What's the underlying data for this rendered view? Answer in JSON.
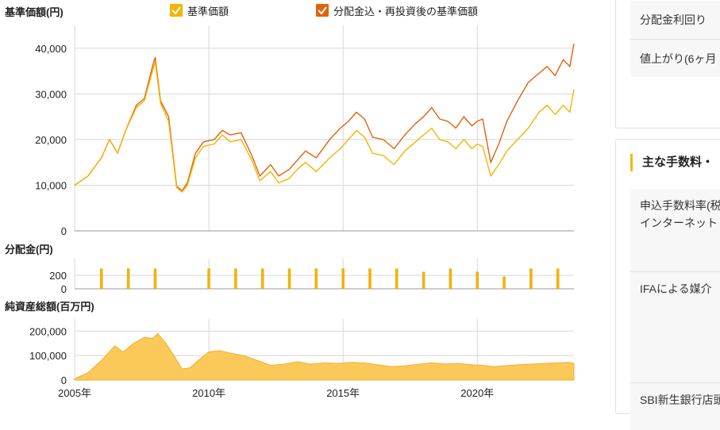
{
  "colors": {
    "nav": "#f5b400",
    "reinvest": "#e0620c",
    "assets": "#fbc95a",
    "dist": "#f6b400",
    "grid": "#d8d8d8"
  },
  "legend": {
    "nav_label": "基準価額",
    "reinvest_label": "分配金込・再投資後の基準価額"
  },
  "panels": {
    "price_title": "基準価額(円)",
    "dist_title": "分配金(円)",
    "assets_title": "純資産総額(百万円)"
  },
  "x_ticks": [
    "2005年",
    "2010年",
    "2015年",
    "2020年"
  ],
  "chart_data": [
    {
      "type": "line",
      "title": "基準価額(円)",
      "ylim": [
        0,
        45000
      ],
      "yticks": [
        "0",
        "10,000",
        "20,000",
        "30,000",
        "40,000"
      ],
      "xlim": [
        2005.0,
        2023.6
      ],
      "x": [
        2005.0,
        2005.5,
        2006.0,
        2006.3,
        2006.6,
        2006.9,
        2007.3,
        2007.6,
        2007.9,
        2008.0,
        2008.2,
        2008.5,
        2008.8,
        2009.0,
        2009.2,
        2009.5,
        2009.8,
        2010.2,
        2010.5,
        2010.8,
        2011.2,
        2011.6,
        2011.9,
        2012.3,
        2012.6,
        2013.0,
        2013.3,
        2013.6,
        2014.0,
        2014.5,
        2014.9,
        2015.2,
        2015.5,
        2015.8,
        2016.1,
        2016.5,
        2016.9,
        2017.3,
        2017.7,
        2018.0,
        2018.3,
        2018.6,
        2018.9,
        2019.2,
        2019.5,
        2019.8,
        2020.0,
        2020.2,
        2020.5,
        2020.8,
        2021.1,
        2021.5,
        2021.9,
        2022.3,
        2022.6,
        2022.9,
        2023.2,
        2023.45,
        2023.6
      ],
      "series": [
        {
          "name": "基準価額",
          "values": [
            10000,
            12000,
            16000,
            20000,
            17000,
            22000,
            27000,
            28500,
            35000,
            37000,
            28000,
            24000,
            9500,
            8500,
            10000,
            16000,
            18500,
            19000,
            21000,
            19500,
            20000,
            15500,
            11000,
            13000,
            10500,
            11500,
            13500,
            15000,
            13000,
            16000,
            18000,
            20000,
            22000,
            20500,
            17000,
            16500,
            14500,
            17500,
            19500,
            21000,
            22500,
            20000,
            19500,
            18000,
            20000,
            18000,
            19000,
            18500,
            12000,
            14500,
            17500,
            20000,
            22500,
            26000,
            27500,
            25500,
            27500,
            26000,
            31000
          ]
        },
        {
          "name": "分配金込・再投資後の基準価額",
          "values": [
            10000,
            12000,
            16000,
            20000,
            17000,
            22000,
            27500,
            29000,
            36000,
            38000,
            28500,
            25000,
            9800,
            8800,
            10500,
            17000,
            19500,
            20000,
            22000,
            21000,
            21500,
            16500,
            12000,
            14500,
            12000,
            13500,
            15500,
            17500,
            16000,
            20000,
            22500,
            24000,
            26000,
            24500,
            20500,
            20000,
            18000,
            21000,
            23500,
            25000,
            27000,
            24500,
            24000,
            22500,
            25000,
            23000,
            24000,
            24500,
            15000,
            19000,
            24000,
            28500,
            32500,
            34500,
            36000,
            34000,
            37500,
            36000,
            41000
          ]
        }
      ]
    },
    {
      "type": "bar",
      "title": "分配金(円)",
      "ylim": [
        0,
        450
      ],
      "yticks": [
        "0",
        "200"
      ],
      "x": [
        2006.0,
        2007.0,
        2008.0,
        2010.0,
        2011.0,
        2012.0,
        2013.0,
        2014.0,
        2015.0,
        2016.0,
        2017.0,
        2018.0,
        2019.0,
        2020.0,
        2021.0,
        2022.0,
        2023.0
      ],
      "values": [
        300,
        300,
        300,
        300,
        300,
        300,
        300,
        300,
        300,
        300,
        300,
        250,
        300,
        250,
        180,
        300,
        300
      ]
    },
    {
      "type": "area",
      "title": "純資産総額(百万円)",
      "ylim": [
        0,
        250000
      ],
      "yticks": [
        "0",
        "100,000",
        "200,000"
      ],
      "x": [
        2005.0,
        2005.5,
        2006.0,
        2006.5,
        2006.8,
        2007.2,
        2007.6,
        2007.9,
        2008.1,
        2008.4,
        2008.7,
        2009.0,
        2009.3,
        2009.6,
        2010.0,
        2010.4,
        2010.8,
        2011.3,
        2011.8,
        2012.3,
        2012.8,
        2013.3,
        2013.8,
        2014.3,
        2014.8,
        2015.3,
        2015.8,
        2016.3,
        2016.8,
        2017.3,
        2017.8,
        2018.3,
        2018.8,
        2019.3,
        2019.8,
        2020.2,
        2020.6,
        2021.0,
        2021.5,
        2022.0,
        2022.5,
        2023.0,
        2023.4,
        2023.6
      ],
      "values": [
        5000,
        30000,
        80000,
        140000,
        115000,
        150000,
        175000,
        170000,
        190000,
        150000,
        100000,
        45000,
        50000,
        80000,
        115000,
        120000,
        110000,
        100000,
        80000,
        60000,
        65000,
        75000,
        65000,
        70000,
        68000,
        72000,
        70000,
        62000,
        55000,
        58000,
        64000,
        70000,
        66000,
        68000,
        62000,
        60000,
        55000,
        58000,
        62000,
        65000,
        68000,
        70000,
        72000,
        68000
      ]
    }
  ],
  "sidebar": {
    "yield_label": "分配金利回り",
    "rise_label": "値上がり(6ヶ月",
    "fees_title": "主な手数料・",
    "fee_items": [
      "申込手数料率(税",
      "インターネット",
      "IFAによる媒介",
      "SBI新生銀行店頭"
    ]
  }
}
